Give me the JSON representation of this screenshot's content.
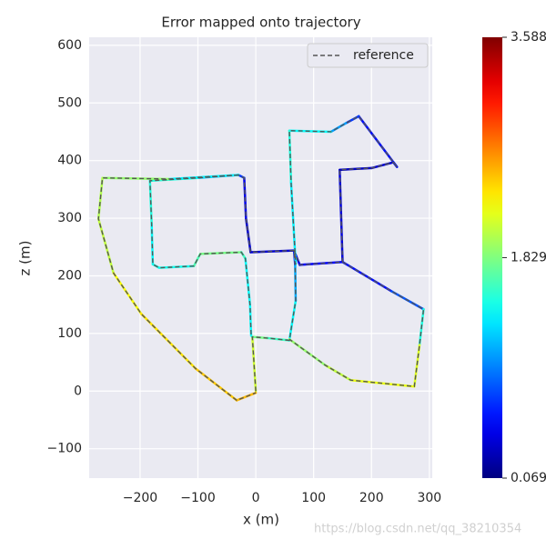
{
  "chart_data": {
    "type": "line",
    "title": "Error mapped onto trajectory",
    "x_label": "x (m)",
    "y_label": "z (m)",
    "xlim": [
      -288,
      305
    ],
    "ylim": [
      -151,
      614
    ],
    "xticks": [
      {
        "value": -200,
        "label": "−200"
      },
      {
        "value": -100,
        "label": "−100"
      },
      0,
      100,
      200,
      300
    ],
    "yticks": [
      {
        "value": -100,
        "label": "−100"
      },
      0,
      100,
      200,
      300,
      400,
      500,
      600
    ],
    "grid": true,
    "legend": "upper right",
    "colormap": "jet",
    "clim": [
      0.069,
      3.588
    ],
    "cticks": [
      0.069,
      1.829,
      3.588
    ],
    "series": [
      {
        "name": "reference",
        "color": "#555555",
        "dashed": true,
        "x": [
          0,
          -6,
          20,
          58,
          69,
          68,
          66,
          -9,
          -17,
          -20,
          -30,
          -100,
          -183,
          -180,
          -178,
          -167,
          -107,
          -96,
          -25,
          -18,
          -10,
          -8,
          null,
          66,
          76,
          150,
          145,
          200,
          238,
          244,
          178,
          156,
          130,
          58,
          61,
          69,
          null,
          150,
          235,
          290,
          283,
          274,
          164,
          120,
          58,
          null,
          -30,
          -150,
          -265,
          -272,
          -246,
          -198,
          -104,
          -33,
          0
        ],
        "y": [
          0,
          94,
          92,
          88,
          157,
          220,
          244,
          241,
          300,
          370,
          375,
          370,
          365,
          290,
          220,
          214,
          217,
          238,
          241,
          230,
          150,
          96,
          null,
          244,
          219,
          224,
          384,
          387,
          397,
          389,
          477,
          465,
          450,
          452,
          362,
          220,
          null,
          224,
          173,
          142,
          80,
          8,
          19,
          45,
          90,
          null,
          375,
          368,
          370,
          299,
          205,
          134,
          39,
          -16,
          -3
        ],
        "values": [
          2.3,
          1.9,
          1.7,
          1.5,
          1.3,
          0.9,
          0.4,
          0.3,
          0.4,
          0.5,
          0.9,
          1.4,
          1.6,
          1.4,
          1.4,
          1.5,
          1.4,
          1.9,
          1.7,
          1.5,
          1.3,
          1.5,
          null,
          0.4,
          0.5,
          0.5,
          0.3,
          0.3,
          0.4,
          0.5,
          0.6,
          0.8,
          1.3,
          1.5,
          1.5,
          1.2,
          null,
          0.5,
          0.6,
          1.0,
          2.0,
          2.3,
          2.1,
          2.0,
          1.8,
          null,
          0.9,
          1.8,
          2.0,
          2.0,
          2.1,
          2.4,
          2.3,
          2.6,
          2.4
        ]
      }
    ]
  },
  "watermark": "https://blog.csdn.net/qq_38210354"
}
